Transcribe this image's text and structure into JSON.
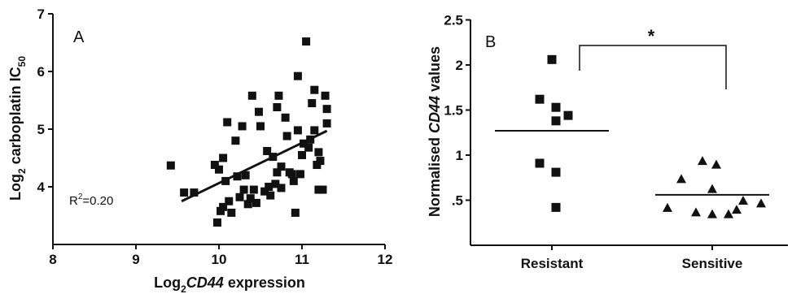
{
  "chart_data": [
    {
      "type": "scatter",
      "panel_label": "A",
      "xlabel_pre": "Log",
      "xlabel_sub": "2",
      "xlabel_gene": "CD44",
      "xlabel_post": " expression",
      "ylabel_pre": "Log",
      "ylabel_sub": "2",
      "ylabel_mid": " carboplatin IC",
      "ylabel_sub2": "50",
      "xlim": [
        8,
        12
      ],
      "ylim": [
        3,
        7
      ],
      "xticks": [
        "8",
        "9",
        "10",
        "11",
        "12"
      ],
      "yticks": [
        "4",
        "5",
        "6",
        "7"
      ],
      "annotation_pre": "R",
      "annotation_sup": "2",
      "annotation_post": "=0.20",
      "regression": {
        "x": [
          9.55,
          11.3
        ],
        "y": [
          3.75,
          4.97
        ]
      },
      "x": [
        9.42,
        9.58,
        9.7,
        9.95,
        9.98,
        10.0,
        10.02,
        10.05,
        10.05,
        10.08,
        10.1,
        10.12,
        10.15,
        10.2,
        10.22,
        10.25,
        10.28,
        10.3,
        10.32,
        10.35,
        10.38,
        10.4,
        10.42,
        10.45,
        10.48,
        10.5,
        10.55,
        10.58,
        10.6,
        10.62,
        10.65,
        10.68,
        10.7,
        10.7,
        10.72,
        10.75,
        10.75,
        10.8,
        10.82,
        10.85,
        10.88,
        10.9,
        10.92,
        10.95,
        10.95,
        10.98,
        11.0,
        11.02,
        11.05,
        11.08,
        11.1,
        11.12,
        11.15,
        11.15,
        11.18,
        11.2,
        11.2,
        11.22,
        11.25,
        11.28,
        11.3,
        11.3
      ],
      "y": [
        4.37,
        3.9,
        3.9,
        4.38,
        3.38,
        4.3,
        3.58,
        3.65,
        4.5,
        4.1,
        5.12,
        3.75,
        3.55,
        4.8,
        4.18,
        3.82,
        5.05,
        3.95,
        4.2,
        3.7,
        3.8,
        5.58,
        3.95,
        3.72,
        5.3,
        5.05,
        3.92,
        4.62,
        4.0,
        3.85,
        4.52,
        4.05,
        5.38,
        4.25,
        5.58,
        3.98,
        4.35,
        5.2,
        4.88,
        4.25,
        4.22,
        4.1,
        3.55,
        4.98,
        5.92,
        4.22,
        4.55,
        4.75,
        6.52,
        4.68,
        4.82,
        5.45,
        5.68,
        4.98,
        4.38,
        4.6,
        3.95,
        4.45,
        3.95,
        5.58,
        5.1,
        5.35
      ]
    },
    {
      "type": "scatter",
      "panel_label": "B",
      "ylabel_pre": "Normalised ",
      "ylabel_gene": "CD44",
      "ylabel_post": " values",
      "ylim": [
        0,
        2.5
      ],
      "yticks": [
        "2.5",
        "2",
        "1.5",
        "1",
        ".5"
      ],
      "categories": [
        "Resistant",
        "Sensitive"
      ],
      "significance": "*",
      "series": [
        {
          "category": "Resistant",
          "marker": "square",
          "values": [
            2.06,
            1.62,
            1.53,
            1.44,
            1.38,
            0.91,
            0.81,
            0.42
          ],
          "mean": 1.27
        },
        {
          "category": "Sensitive",
          "marker": "triangle",
          "values": [
            0.94,
            0.9,
            0.74,
            0.63,
            0.5,
            0.47,
            0.42,
            0.4,
            0.37,
            0.35,
            0.35
          ],
          "mean": 0.56
        }
      ]
    }
  ]
}
